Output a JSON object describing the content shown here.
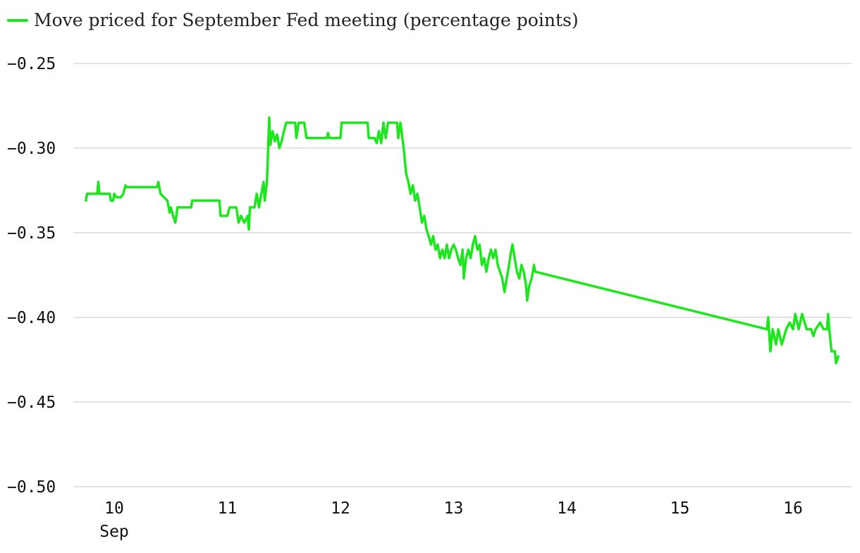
{
  "chart_data": {
    "type": "line",
    "title": "",
    "xlabel": "",
    "ylabel": "",
    "legend_position": "top-left",
    "grid": true,
    "ylim": [
      -0.5,
      -0.25
    ],
    "xlim": [
      9.72,
      16.45
    ],
    "y_ticks": [
      {
        "value": -0.25,
        "label": "−0.25"
      },
      {
        "value": -0.3,
        "label": "−0.30"
      },
      {
        "value": -0.35,
        "label": "−0.35"
      },
      {
        "value": -0.4,
        "label": "−0.40"
      },
      {
        "value": -0.45,
        "label": "−0.45"
      },
      {
        "value": -0.5,
        "label": "−0.50"
      }
    ],
    "x_ticks": [
      {
        "value": 10,
        "label": "10",
        "sublabel": "Sep"
      },
      {
        "value": 11,
        "label": "11",
        "sublabel": ""
      },
      {
        "value": 12,
        "label": "12",
        "sublabel": ""
      },
      {
        "value": 13,
        "label": "13",
        "sublabel": ""
      },
      {
        "value": 14,
        "label": "14",
        "sublabel": ""
      },
      {
        "value": 15,
        "label": "15",
        "sublabel": ""
      },
      {
        "value": 16,
        "label": "16",
        "sublabel": ""
      }
    ],
    "series": [
      {
        "name": "Move priced for September Fed meeting (percentage points)",
        "color": "#1ee61e",
        "points": [
          [
            9.75,
            -0.331
          ],
          [
            9.76,
            -0.327
          ],
          [
            9.85,
            -0.327
          ],
          [
            9.86,
            -0.32
          ],
          [
            9.87,
            -0.327
          ],
          [
            9.96,
            -0.327
          ],
          [
            9.97,
            -0.331
          ],
          [
            9.99,
            -0.331
          ],
          [
            10.0,
            -0.327
          ],
          [
            10.02,
            -0.329
          ],
          [
            10.06,
            -0.329
          ],
          [
            10.08,
            -0.327
          ],
          [
            10.1,
            -0.322
          ],
          [
            10.11,
            -0.323
          ],
          [
            10.38,
            -0.323
          ],
          [
            10.39,
            -0.32
          ],
          [
            10.41,
            -0.327
          ],
          [
            10.47,
            -0.331
          ],
          [
            10.49,
            -0.338
          ],
          [
            10.5,
            -0.335
          ],
          [
            10.52,
            -0.34
          ],
          [
            10.54,
            -0.344
          ],
          [
            10.56,
            -0.335
          ],
          [
            10.68,
            -0.335
          ],
          [
            10.69,
            -0.331
          ],
          [
            10.93,
            -0.331
          ],
          [
            10.94,
            -0.34
          ],
          [
            11.0,
            -0.34
          ],
          [
            11.02,
            -0.335
          ],
          [
            11.08,
            -0.335
          ],
          [
            11.1,
            -0.344
          ],
          [
            11.12,
            -0.34
          ],
          [
            11.15,
            -0.344
          ],
          [
            11.18,
            -0.34
          ],
          [
            11.19,
            -0.348
          ],
          [
            11.2,
            -0.335
          ],
          [
            11.24,
            -0.335
          ],
          [
            11.26,
            -0.327
          ],
          [
            11.28,
            -0.335
          ],
          [
            11.3,
            -0.327
          ],
          [
            11.32,
            -0.32
          ],
          [
            11.33,
            -0.331
          ],
          [
            11.35,
            -0.32
          ],
          [
            11.36,
            -0.301
          ],
          [
            11.37,
            -0.282
          ],
          [
            11.38,
            -0.298
          ],
          [
            11.4,
            -0.29
          ],
          [
            11.42,
            -0.296
          ],
          [
            11.44,
            -0.292
          ],
          [
            11.46,
            -0.3
          ],
          [
            11.48,
            -0.296
          ],
          [
            11.5,
            -0.29
          ],
          [
            11.52,
            -0.285
          ],
          [
            11.6,
            -0.285
          ],
          [
            11.61,
            -0.294
          ],
          [
            11.63,
            -0.285
          ],
          [
            11.68,
            -0.285
          ],
          [
            11.7,
            -0.294
          ],
          [
            11.88,
            -0.294
          ],
          [
            11.89,
            -0.291
          ],
          [
            11.9,
            -0.294
          ],
          [
            12.0,
            -0.294
          ],
          [
            12.01,
            -0.285
          ],
          [
            12.24,
            -0.285
          ],
          [
            12.25,
            -0.294
          ],
          [
            12.3,
            -0.294
          ],
          [
            12.32,
            -0.297
          ],
          [
            12.34,
            -0.29
          ],
          [
            12.36,
            -0.297
          ],
          [
            12.38,
            -0.285
          ],
          [
            12.4,
            -0.294
          ],
          [
            12.42,
            -0.285
          ],
          [
            12.5,
            -0.285
          ],
          [
            12.51,
            -0.294
          ],
          [
            12.53,
            -0.285
          ],
          [
            12.56,
            -0.301
          ],
          [
            12.58,
            -0.315
          ],
          [
            12.6,
            -0.32
          ],
          [
            12.62,
            -0.327
          ],
          [
            12.64,
            -0.322
          ],
          [
            12.66,
            -0.331
          ],
          [
            12.68,
            -0.327
          ],
          [
            12.7,
            -0.335
          ],
          [
            12.72,
            -0.344
          ],
          [
            12.74,
            -0.34
          ],
          [
            12.76,
            -0.348
          ],
          [
            12.78,
            -0.352
          ],
          [
            12.8,
            -0.357
          ],
          [
            12.82,
            -0.352
          ],
          [
            12.84,
            -0.36
          ],
          [
            12.86,
            -0.357
          ],
          [
            12.88,
            -0.365
          ],
          [
            12.9,
            -0.36
          ],
          [
            12.92,
            -0.365
          ],
          [
            12.94,
            -0.357
          ],
          [
            12.96,
            -0.365
          ],
          [
            12.98,
            -0.36
          ],
          [
            13.0,
            -0.357
          ],
          [
            13.02,
            -0.36
          ],
          [
            13.04,
            -0.365
          ],
          [
            13.06,
            -0.369
          ],
          [
            13.08,
            -0.36
          ],
          [
            13.09,
            -0.377
          ],
          [
            13.11,
            -0.365
          ],
          [
            13.13,
            -0.36
          ],
          [
            13.15,
            -0.365
          ],
          [
            13.17,
            -0.357
          ],
          [
            13.19,
            -0.352
          ],
          [
            13.21,
            -0.36
          ],
          [
            13.23,
            -0.357
          ],
          [
            13.25,
            -0.369
          ],
          [
            13.27,
            -0.365
          ],
          [
            13.29,
            -0.373
          ],
          [
            13.31,
            -0.365
          ],
          [
            13.33,
            -0.36
          ],
          [
            13.35,
            -0.365
          ],
          [
            13.37,
            -0.36
          ],
          [
            13.39,
            -0.369
          ],
          [
            13.41,
            -0.373
          ],
          [
            13.43,
            -0.377
          ],
          [
            13.45,
            -0.385
          ],
          [
            13.47,
            -0.377
          ],
          [
            13.49,
            -0.369
          ],
          [
            13.51,
            -0.36
          ],
          [
            13.52,
            -0.357
          ],
          [
            13.54,
            -0.365
          ],
          [
            13.56,
            -0.373
          ],
          [
            13.58,
            -0.377
          ],
          [
            13.6,
            -0.369
          ],
          [
            13.62,
            -0.373
          ],
          [
            13.64,
            -0.381
          ],
          [
            13.65,
            -0.39
          ],
          [
            13.67,
            -0.381
          ],
          [
            13.69,
            -0.377
          ],
          [
            13.71,
            -0.369
          ],
          [
            13.72,
            -0.373
          ],
          [
            15.77,
            -0.407
          ],
          [
            15.78,
            -0.4
          ],
          [
            15.8,
            -0.42
          ],
          [
            15.82,
            -0.407
          ],
          [
            15.85,
            -0.416
          ],
          [
            15.87,
            -0.407
          ],
          [
            15.9,
            -0.416
          ],
          [
            15.94,
            -0.407
          ],
          [
            15.97,
            -0.403
          ],
          [
            16.0,
            -0.407
          ],
          [
            16.02,
            -0.398
          ],
          [
            16.05,
            -0.407
          ],
          [
            16.08,
            -0.398
          ],
          [
            16.12,
            -0.407
          ],
          [
            16.16,
            -0.407
          ],
          [
            16.18,
            -0.411
          ],
          [
            16.2,
            -0.407
          ],
          [
            16.24,
            -0.403
          ],
          [
            16.27,
            -0.407
          ],
          [
            16.3,
            -0.407
          ],
          [
            16.31,
            -0.398
          ],
          [
            16.32,
            -0.407
          ],
          [
            16.34,
            -0.42
          ],
          [
            16.37,
            -0.42
          ],
          [
            16.38,
            -0.427
          ],
          [
            16.4,
            -0.423
          ]
        ]
      }
    ]
  }
}
